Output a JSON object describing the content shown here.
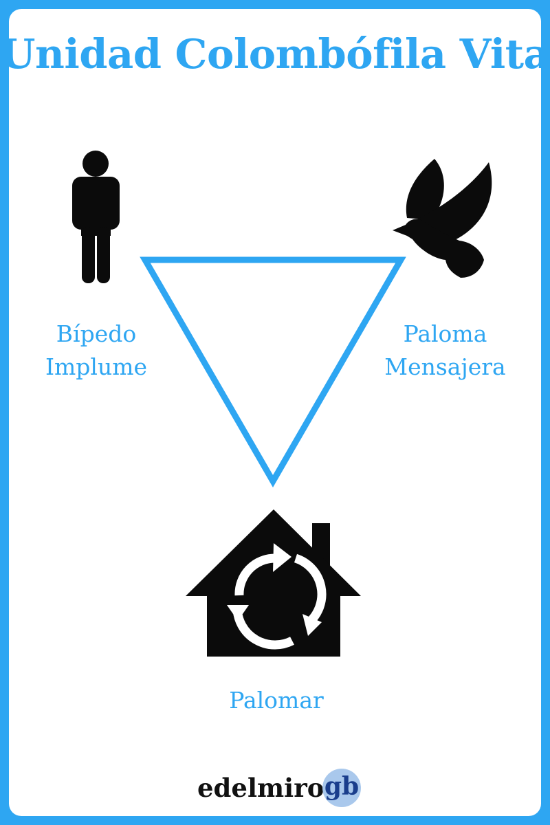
{
  "title": "Unidad Colombófila Vital",
  "nodes": {
    "left": {
      "line1": "Bípedo",
      "line2": "Implume",
      "icon": "person-icon"
    },
    "right": {
      "line1": "Paloma",
      "line2": "Mensajera",
      "icon": "dove-icon"
    },
    "bottom": {
      "label": "Palomar",
      "icon": "recycle-house-icon"
    }
  },
  "brand": {
    "name": "edelmiro",
    "suffix": "gb"
  },
  "colors": {
    "accent": "#2ea6f2",
    "icon": "#0b0b0b",
    "brand_badge": "#a9c8ec"
  }
}
